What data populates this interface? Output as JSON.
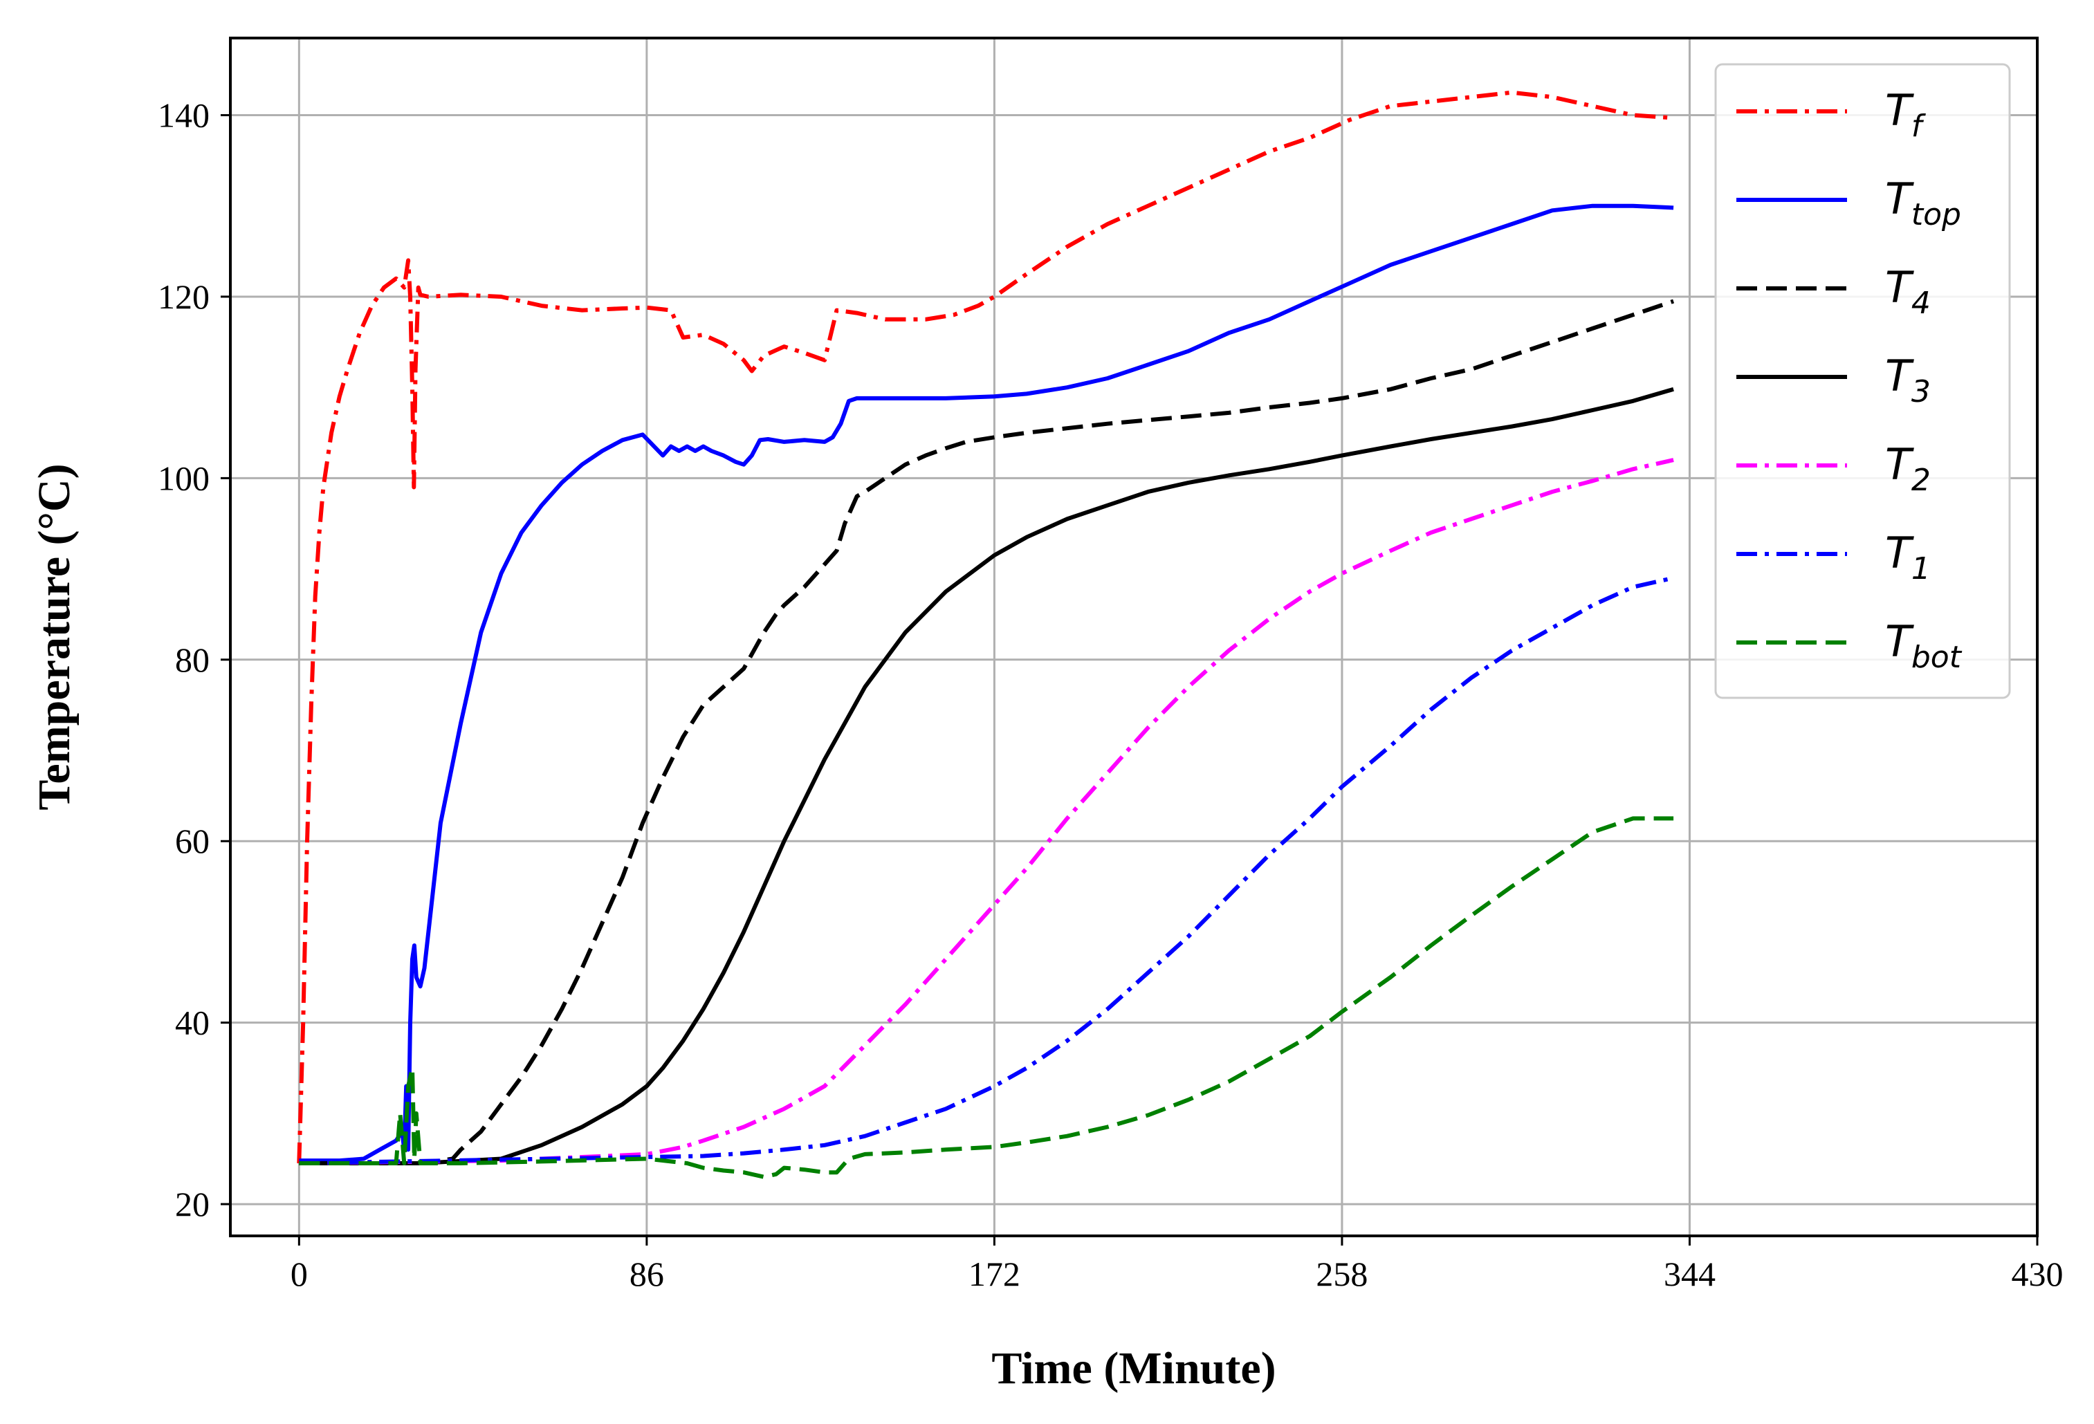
{
  "chart_data": {
    "type": "line",
    "title": "",
    "xlabel": "Time (Minute)",
    "ylabel": "Temperature  (°C)",
    "xlim": [
      -17,
      430
    ],
    "ylim": [
      16.5,
      148.5
    ],
    "xticks": [
      0,
      86,
      172,
      258,
      344,
      430
    ],
    "yticks": [
      20,
      40,
      60,
      80,
      100,
      120,
      140
    ],
    "grid": true,
    "legend_position": "top-right",
    "series": [
      {
        "name": "T",
        "sub": "f",
        "color": "#ff0000",
        "dash": "dotdash",
        "x": [
          0,
          1,
          2,
          3,
          4,
          5,
          6,
          8,
          10,
          12,
          15,
          18,
          21,
          24,
          26,
          27,
          27.5,
          28,
          28.4,
          28.8,
          29.5,
          30,
          32,
          40,
          50,
          60,
          70,
          80,
          86,
          92,
          95,
          100,
          105,
          110,
          112,
          115,
          120,
          125,
          130,
          133,
          138,
          145,
          155,
          162,
          168,
          172,
          180,
          190,
          200,
          210,
          220,
          230,
          240,
          250,
          260,
          270,
          280,
          290,
          300,
          310,
          320,
          330,
          340
        ],
        "y": [
          24.5,
          40,
          60,
          75,
          87,
          94,
          99,
          105,
          109,
          112,
          116,
          119,
          121,
          122,
          121,
          124,
          120,
          110,
          99,
          112,
          121,
          120.2,
          120,
          120.2,
          120,
          119,
          118.5,
          118.7,
          118.8,
          118.5,
          115.5,
          115.8,
          114.8,
          113,
          111.8,
          113.5,
          114.5,
          113.8,
          113,
          118.5,
          118.2,
          117.5,
          117.5,
          118,
          119,
          120,
          122.5,
          125.5,
          128,
          130,
          132,
          134,
          136,
          137.5,
          139.5,
          141,
          141.5,
          142,
          142.5,
          142,
          141,
          140,
          139.7
        ]
      },
      {
        "name": "T",
        "sub": "top",
        "color": "#0000ff",
        "dash": "solid",
        "x": [
          0,
          10,
          16,
          20,
          24,
          25.5,
          26,
          26.5,
          27,
          27.5,
          28,
          28.5,
          29,
          30,
          31,
          33,
          35,
          40,
          45,
          50,
          55,
          60,
          65,
          70,
          75,
          80,
          85,
          90,
          92,
          94,
          96,
          98,
          100,
          102,
          105,
          108,
          110,
          112,
          114,
          116,
          120,
          125,
          130,
          132,
          134,
          136,
          138,
          140,
          150,
          160,
          172,
          180,
          190,
          200,
          210,
          220,
          230,
          240,
          250,
          260,
          270,
          280,
          290,
          300,
          310,
          320,
          330,
          340
        ],
        "y": [
          24.8,
          24.8,
          25,
          26,
          27,
          28,
          26,
          33,
          26,
          40,
          47,
          48.5,
          45,
          44,
          46,
          54,
          62,
          73,
          83,
          89.5,
          94,
          97,
          99.5,
          101.5,
          103,
          104.2,
          104.8,
          102.5,
          103.5,
          103,
          103.5,
          103,
          103.5,
          103,
          102.5,
          101.8,
          101.5,
          102.5,
          104.2,
          104.3,
          104,
          104.2,
          104,
          104.5,
          106,
          108.5,
          108.8,
          108.8,
          108.8,
          108.8,
          109,
          109.3,
          110,
          111,
          112.5,
          114,
          116,
          117.5,
          119.5,
          121.5,
          123.5,
          125,
          126.5,
          128,
          129.5,
          130,
          130,
          129.8
        ]
      },
      {
        "name": "T",
        "sub": "4",
        "color": "#000000",
        "dash": "dashed",
        "x": [
          0,
          20,
          30,
          38,
          40,
          45,
          50,
          55,
          60,
          65,
          70,
          75,
          80,
          85,
          90,
          95,
          100,
          105,
          110,
          115,
          118,
          120,
          125,
          130,
          133,
          135,
          138,
          140,
          145,
          150,
          155,
          160,
          165,
          172,
          180,
          190,
          200,
          210,
          220,
          230,
          240,
          250,
          258,
          270,
          280,
          290,
          300,
          310,
          320,
          330,
          340
        ],
        "y": [
          24.5,
          24.5,
          24.5,
          25,
          26,
          28,
          31,
          34,
          37.5,
          41.5,
          46,
          51,
          56,
          62,
          67,
          71.5,
          75,
          77,
          79,
          83,
          85,
          86,
          88,
          90.5,
          92,
          95,
          98,
          98.5,
          100,
          101.5,
          102.5,
          103.3,
          104,
          104.5,
          105,
          105.5,
          106,
          106.4,
          106.8,
          107.2,
          107.8,
          108.3,
          108.8,
          109.8,
          111,
          112,
          113.5,
          115,
          116.5,
          118,
          119.5
        ]
      },
      {
        "name": "T",
        "sub": "3",
        "color": "#000000",
        "dash": "solid",
        "x": [
          0,
          30,
          50,
          60,
          70,
          80,
          86,
          90,
          95,
          100,
          105,
          110,
          115,
          120,
          125,
          130,
          135,
          140,
          150,
          160,
          172,
          180,
          190,
          200,
          210,
          220,
          230,
          240,
          250,
          258,
          270,
          280,
          290,
          300,
          310,
          320,
          330,
          340
        ],
        "y": [
          24.5,
          24.5,
          25,
          26.5,
          28.5,
          31,
          33,
          35,
          38,
          41.5,
          45.5,
          50,
          55,
          60,
          64.5,
          69,
          73,
          77,
          83,
          87.5,
          91.5,
          93.5,
          95.5,
          97,
          98.5,
          99.5,
          100.3,
          101,
          101.8,
          102.5,
          103.5,
          104.3,
          105,
          105.7,
          106.5,
          107.5,
          108.5,
          109.8
        ]
      },
      {
        "name": "T",
        "sub": "2",
        "color": "#ff00ff",
        "dash": "dotdash",
        "x": [
          0,
          50,
          86,
          95,
          100,
          110,
          120,
          130,
          140,
          150,
          160,
          172,
          180,
          190,
          200,
          210,
          220,
          230,
          240,
          250,
          258,
          270,
          280,
          290,
          300,
          310,
          320,
          330,
          340
        ],
        "y": [
          24.5,
          24.8,
          25.5,
          26.3,
          27,
          28.5,
          30.5,
          33,
          37.5,
          42,
          47,
          53,
          57,
          62.5,
          67.5,
          72.5,
          77,
          81,
          84.5,
          87.5,
          89.5,
          92,
          94,
          95.5,
          97,
          98.5,
          99.7,
          101,
          102
        ]
      },
      {
        "name": "T",
        "sub": "1",
        "color": "#0000ff",
        "dash": "dotdash",
        "x": [
          0,
          100,
          110,
          120,
          130,
          140,
          150,
          160,
          172,
          180,
          190,
          200,
          210,
          220,
          230,
          240,
          250,
          258,
          270,
          280,
          290,
          300,
          310,
          320,
          330,
          340
        ],
        "y": [
          24.5,
          25.3,
          25.6,
          26,
          26.5,
          27.5,
          29,
          30.5,
          33,
          35,
          38,
          41.5,
          45.5,
          49.5,
          54,
          58.5,
          62.5,
          66,
          70.5,
          74.5,
          78,
          81,
          83.5,
          86,
          88,
          89
        ]
      },
      {
        "name": "T",
        "sub": "bot",
        "color": "#008000",
        "dash": "dashed",
        "x": [
          0,
          20,
          24,
          25,
          26,
          27,
          28,
          28.5,
          29,
          30,
          32,
          40,
          60,
          86,
          96,
          100,
          105,
          110,
          115,
          118,
          120,
          125,
          130,
          133,
          136,
          140,
          150,
          160,
          172,
          180,
          190,
          200,
          210,
          220,
          230,
          240,
          250,
          258,
          270,
          280,
          290,
          300,
          310,
          320,
          330,
          340
        ],
        "y": [
          24.5,
          24.5,
          24.5,
          30,
          24.5,
          33,
          35,
          25,
          30,
          24.5,
          24.5,
          24.5,
          24.7,
          25,
          24.5,
          24,
          23.7,
          23.5,
          23,
          23.3,
          24,
          23.8,
          23.5,
          23.5,
          25,
          25.5,
          25.7,
          26,
          26.3,
          26.8,
          27.5,
          28.5,
          29.8,
          31.5,
          33.5,
          36,
          38.5,
          41.2,
          45,
          48.5,
          51.8,
          55,
          58,
          61,
          62.5,
          62.5
        ]
      }
    ]
  }
}
